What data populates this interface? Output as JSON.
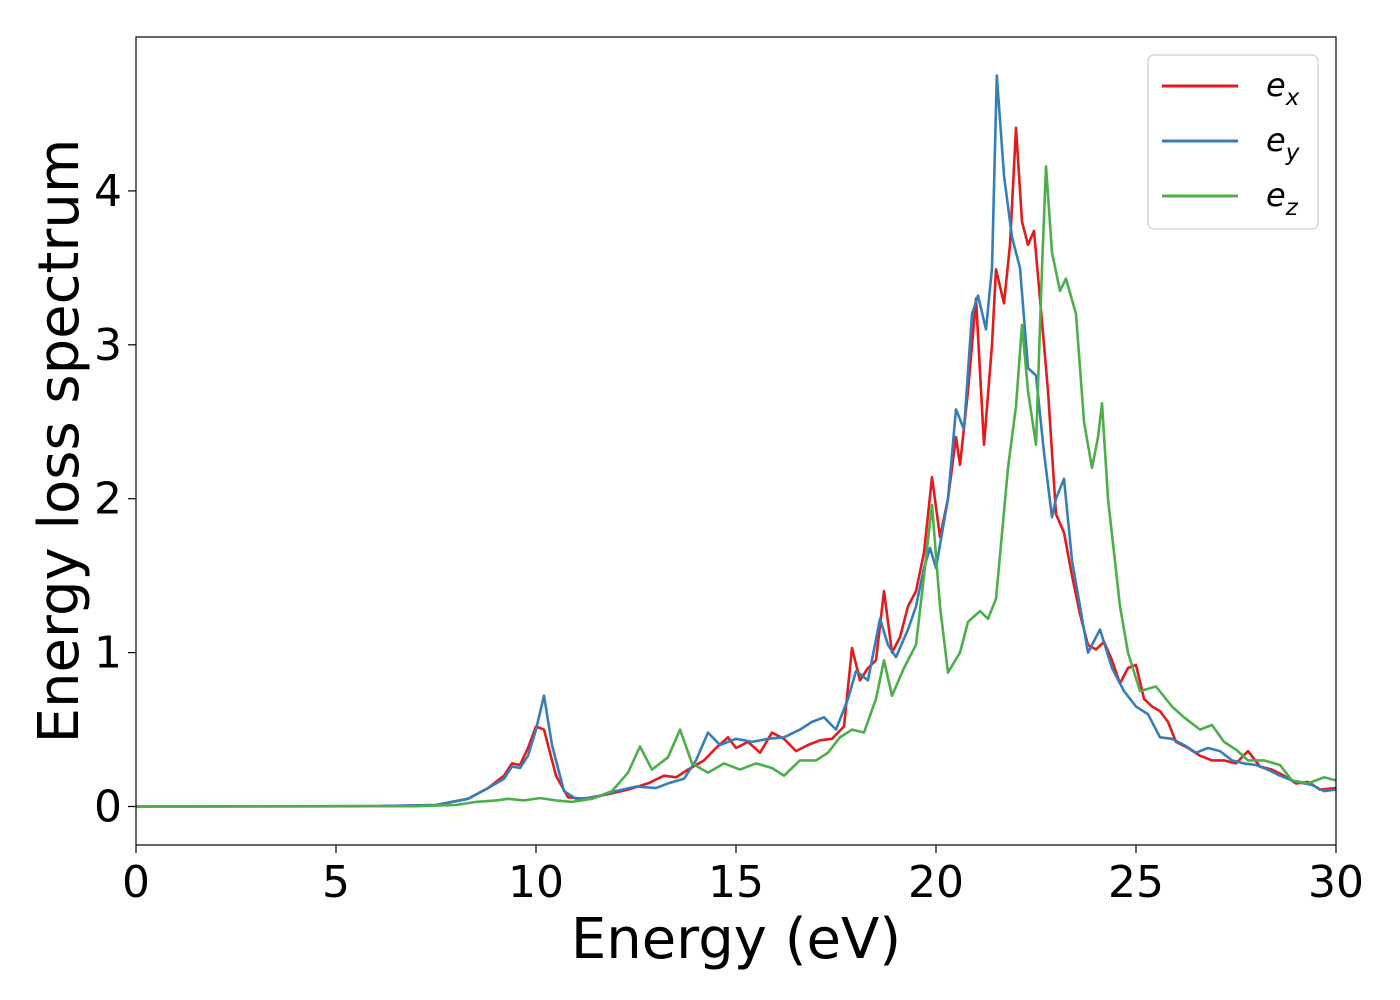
{
  "chart_data": {
    "type": "line",
    "title": "",
    "xlabel": "Energy (eV)",
    "ylabel": "Energy loss spectrum",
    "xlim": [
      0,
      30
    ],
    "ylim": [
      -0.25,
      5.0
    ],
    "xticks": [
      0,
      5,
      10,
      15,
      20,
      25,
      30
    ],
    "yticks": [
      0,
      1,
      2,
      3,
      4
    ],
    "grid": false,
    "legend_position": "top-right",
    "series": [
      {
        "name": "e",
        "subscript": "x",
        "color": "#e41a1c",
        "points": [
          [
            0,
            0
          ],
          [
            6,
            0.002
          ],
          [
            7.5,
            0.01
          ],
          [
            8.3,
            0.05
          ],
          [
            8.8,
            0.12
          ],
          [
            9.2,
            0.2
          ],
          [
            9.4,
            0.28
          ],
          [
            9.6,
            0.27
          ],
          [
            9.8,
            0.38
          ],
          [
            10.0,
            0.52
          ],
          [
            10.2,
            0.5
          ],
          [
            10.5,
            0.2
          ],
          [
            10.8,
            0.06
          ],
          [
            11.2,
            0.05
          ],
          [
            11.8,
            0.08
          ],
          [
            12.3,
            0.11
          ],
          [
            12.8,
            0.15
          ],
          [
            13.2,
            0.2
          ],
          [
            13.5,
            0.19
          ],
          [
            13.8,
            0.24
          ],
          [
            14.2,
            0.3
          ],
          [
            14.5,
            0.38
          ],
          [
            14.8,
            0.45
          ],
          [
            15.0,
            0.38
          ],
          [
            15.3,
            0.42
          ],
          [
            15.6,
            0.35
          ],
          [
            15.9,
            0.48
          ],
          [
            16.2,
            0.44
          ],
          [
            16.5,
            0.36
          ],
          [
            16.8,
            0.4
          ],
          [
            17.1,
            0.43
          ],
          [
            17.4,
            0.44
          ],
          [
            17.7,
            0.52
          ],
          [
            17.9,
            1.03
          ],
          [
            18.1,
            0.82
          ],
          [
            18.3,
            0.9
          ],
          [
            18.5,
            0.95
          ],
          [
            18.7,
            1.4
          ],
          [
            18.9,
            1.0
          ],
          [
            19.1,
            1.1
          ],
          [
            19.3,
            1.3
          ],
          [
            19.5,
            1.4
          ],
          [
            19.7,
            1.65
          ],
          [
            19.9,
            2.14
          ],
          [
            20.1,
            1.75
          ],
          [
            20.3,
            2.0
          ],
          [
            20.5,
            2.4
          ],
          [
            20.6,
            2.22
          ],
          [
            20.8,
            2.7
          ],
          [
            21.0,
            3.3
          ],
          [
            21.2,
            2.35
          ],
          [
            21.4,
            3.0
          ],
          [
            21.5,
            3.49
          ],
          [
            21.7,
            3.27
          ],
          [
            21.85,
            3.65
          ],
          [
            22.0,
            4.41
          ],
          [
            22.15,
            3.8
          ],
          [
            22.3,
            3.65
          ],
          [
            22.45,
            3.74
          ],
          [
            22.6,
            3.3
          ],
          [
            22.8,
            2.7
          ],
          [
            23.0,
            1.9
          ],
          [
            23.2,
            1.78
          ],
          [
            23.4,
            1.5
          ],
          [
            23.6,
            1.25
          ],
          [
            23.8,
            1.05
          ],
          [
            24.0,
            1.02
          ],
          [
            24.2,
            1.07
          ],
          [
            24.4,
            0.95
          ],
          [
            24.6,
            0.8
          ],
          [
            24.8,
            0.9
          ],
          [
            25.0,
            0.92
          ],
          [
            25.2,
            0.7
          ],
          [
            25.4,
            0.65
          ],
          [
            25.6,
            0.62
          ],
          [
            25.8,
            0.55
          ],
          [
            26.0,
            0.42
          ],
          [
            26.3,
            0.38
          ],
          [
            26.6,
            0.33
          ],
          [
            26.9,
            0.3
          ],
          [
            27.2,
            0.3
          ],
          [
            27.5,
            0.28
          ],
          [
            27.8,
            0.36
          ],
          [
            28.1,
            0.26
          ],
          [
            28.4,
            0.24
          ],
          [
            28.7,
            0.2
          ],
          [
            29.0,
            0.15
          ],
          [
            29.3,
            0.16
          ],
          [
            29.6,
            0.11
          ],
          [
            30,
            0.12
          ]
        ]
      },
      {
        "name": "e",
        "subscript": "y",
        "color": "#377eb8",
        "points": [
          [
            0,
            0
          ],
          [
            6,
            0.002
          ],
          [
            7.5,
            0.01
          ],
          [
            8.3,
            0.05
          ],
          [
            8.8,
            0.12
          ],
          [
            9.2,
            0.18
          ],
          [
            9.4,
            0.26
          ],
          [
            9.6,
            0.25
          ],
          [
            9.8,
            0.33
          ],
          [
            10.0,
            0.5
          ],
          [
            10.2,
            0.72
          ],
          [
            10.4,
            0.4
          ],
          [
            10.7,
            0.1
          ],
          [
            11.0,
            0.05
          ],
          [
            11.5,
            0.06
          ],
          [
            12.0,
            0.1
          ],
          [
            12.5,
            0.13
          ],
          [
            13.0,
            0.12
          ],
          [
            13.3,
            0.15
          ],
          [
            13.7,
            0.18
          ],
          [
            14.0,
            0.3
          ],
          [
            14.3,
            0.48
          ],
          [
            14.6,
            0.4
          ],
          [
            15.0,
            0.44
          ],
          [
            15.4,
            0.42
          ],
          [
            15.8,
            0.44
          ],
          [
            16.2,
            0.45
          ],
          [
            16.6,
            0.5
          ],
          [
            16.9,
            0.55
          ],
          [
            17.2,
            0.58
          ],
          [
            17.5,
            0.5
          ],
          [
            17.8,
            0.7
          ],
          [
            18.0,
            0.88
          ],
          [
            18.3,
            0.82
          ],
          [
            18.6,
            1.22
          ],
          [
            18.8,
            1.05
          ],
          [
            19.0,
            0.97
          ],
          [
            19.3,
            1.15
          ],
          [
            19.5,
            1.3
          ],
          [
            19.7,
            1.55
          ],
          [
            19.85,
            1.68
          ],
          [
            20.0,
            1.55
          ],
          [
            20.3,
            2.0
          ],
          [
            20.5,
            2.58
          ],
          [
            20.7,
            2.45
          ],
          [
            20.9,
            3.2
          ],
          [
            21.05,
            3.32
          ],
          [
            21.25,
            3.1
          ],
          [
            21.4,
            3.5
          ],
          [
            21.52,
            4.75
          ],
          [
            21.7,
            4.1
          ],
          [
            21.9,
            3.7
          ],
          [
            22.1,
            3.5
          ],
          [
            22.3,
            2.85
          ],
          [
            22.5,
            2.8
          ],
          [
            22.7,
            2.3
          ],
          [
            22.9,
            1.88
          ],
          [
            23.0,
            2.0
          ],
          [
            23.2,
            2.13
          ],
          [
            23.4,
            1.6
          ],
          [
            23.6,
            1.3
          ],
          [
            23.8,
            1.0
          ],
          [
            24.1,
            1.15
          ],
          [
            24.4,
            0.9
          ],
          [
            24.7,
            0.75
          ],
          [
            25.0,
            0.65
          ],
          [
            25.3,
            0.6
          ],
          [
            25.6,
            0.45
          ],
          [
            25.9,
            0.44
          ],
          [
            26.2,
            0.4
          ],
          [
            26.5,
            0.35
          ],
          [
            26.8,
            0.38
          ],
          [
            27.1,
            0.36
          ],
          [
            27.4,
            0.3
          ],
          [
            27.7,
            0.28
          ],
          [
            28.0,
            0.27
          ],
          [
            28.3,
            0.24
          ],
          [
            28.6,
            0.2
          ],
          [
            29.0,
            0.16
          ],
          [
            29.4,
            0.14
          ],
          [
            29.7,
            0.1
          ],
          [
            30,
            0.11
          ]
        ]
      },
      {
        "name": "e",
        "subscript": "z",
        "color": "#4daf4a",
        "points": [
          [
            0,
            0
          ],
          [
            7,
            0.002
          ],
          [
            8.0,
            0.01
          ],
          [
            8.5,
            0.03
          ],
          [
            9.0,
            0.04
          ],
          [
            9.3,
            0.05
          ],
          [
            9.7,
            0.04
          ],
          [
            10.1,
            0.055
          ],
          [
            10.5,
            0.04
          ],
          [
            10.9,
            0.03
          ],
          [
            11.4,
            0.05
          ],
          [
            11.9,
            0.1
          ],
          [
            12.3,
            0.22
          ],
          [
            12.6,
            0.39
          ],
          [
            12.9,
            0.24
          ],
          [
            13.3,
            0.32
          ],
          [
            13.6,
            0.5
          ],
          [
            13.9,
            0.28
          ],
          [
            14.3,
            0.22
          ],
          [
            14.7,
            0.28
          ],
          [
            15.1,
            0.24
          ],
          [
            15.5,
            0.28
          ],
          [
            15.9,
            0.25
          ],
          [
            16.2,
            0.2
          ],
          [
            16.6,
            0.3
          ],
          [
            17.0,
            0.3
          ],
          [
            17.3,
            0.35
          ],
          [
            17.6,
            0.45
          ],
          [
            17.9,
            0.5
          ],
          [
            18.2,
            0.48
          ],
          [
            18.5,
            0.7
          ],
          [
            18.7,
            0.95
          ],
          [
            18.9,
            0.72
          ],
          [
            19.2,
            0.9
          ],
          [
            19.5,
            1.05
          ],
          [
            19.7,
            1.5
          ],
          [
            19.9,
            1.96
          ],
          [
            20.1,
            1.3
          ],
          [
            20.3,
            0.87
          ],
          [
            20.6,
            1.0
          ],
          [
            20.8,
            1.2
          ],
          [
            21.1,
            1.27
          ],
          [
            21.3,
            1.22
          ],
          [
            21.5,
            1.35
          ],
          [
            21.8,
            2.2
          ],
          [
            22.0,
            2.6
          ],
          [
            22.15,
            3.13
          ],
          [
            22.3,
            2.7
          ],
          [
            22.5,
            2.35
          ],
          [
            22.65,
            3.5
          ],
          [
            22.75,
            4.16
          ],
          [
            22.9,
            3.6
          ],
          [
            23.1,
            3.35
          ],
          [
            23.25,
            3.43
          ],
          [
            23.5,
            3.2
          ],
          [
            23.7,
            2.5
          ],
          [
            23.9,
            2.2
          ],
          [
            24.05,
            2.4
          ],
          [
            24.15,
            2.62
          ],
          [
            24.3,
            2.0
          ],
          [
            24.6,
            1.3
          ],
          [
            24.8,
            1.0
          ],
          [
            25.1,
            0.75
          ],
          [
            25.5,
            0.78
          ],
          [
            25.9,
            0.65
          ],
          [
            26.2,
            0.58
          ],
          [
            26.6,
            0.5
          ],
          [
            26.9,
            0.53
          ],
          [
            27.2,
            0.42
          ],
          [
            27.5,
            0.37
          ],
          [
            27.8,
            0.3
          ],
          [
            28.2,
            0.3
          ],
          [
            28.6,
            0.27
          ],
          [
            28.9,
            0.17
          ],
          [
            29.3,
            0.15
          ],
          [
            29.7,
            0.19
          ],
          [
            30,
            0.17
          ]
        ]
      }
    ]
  }
}
